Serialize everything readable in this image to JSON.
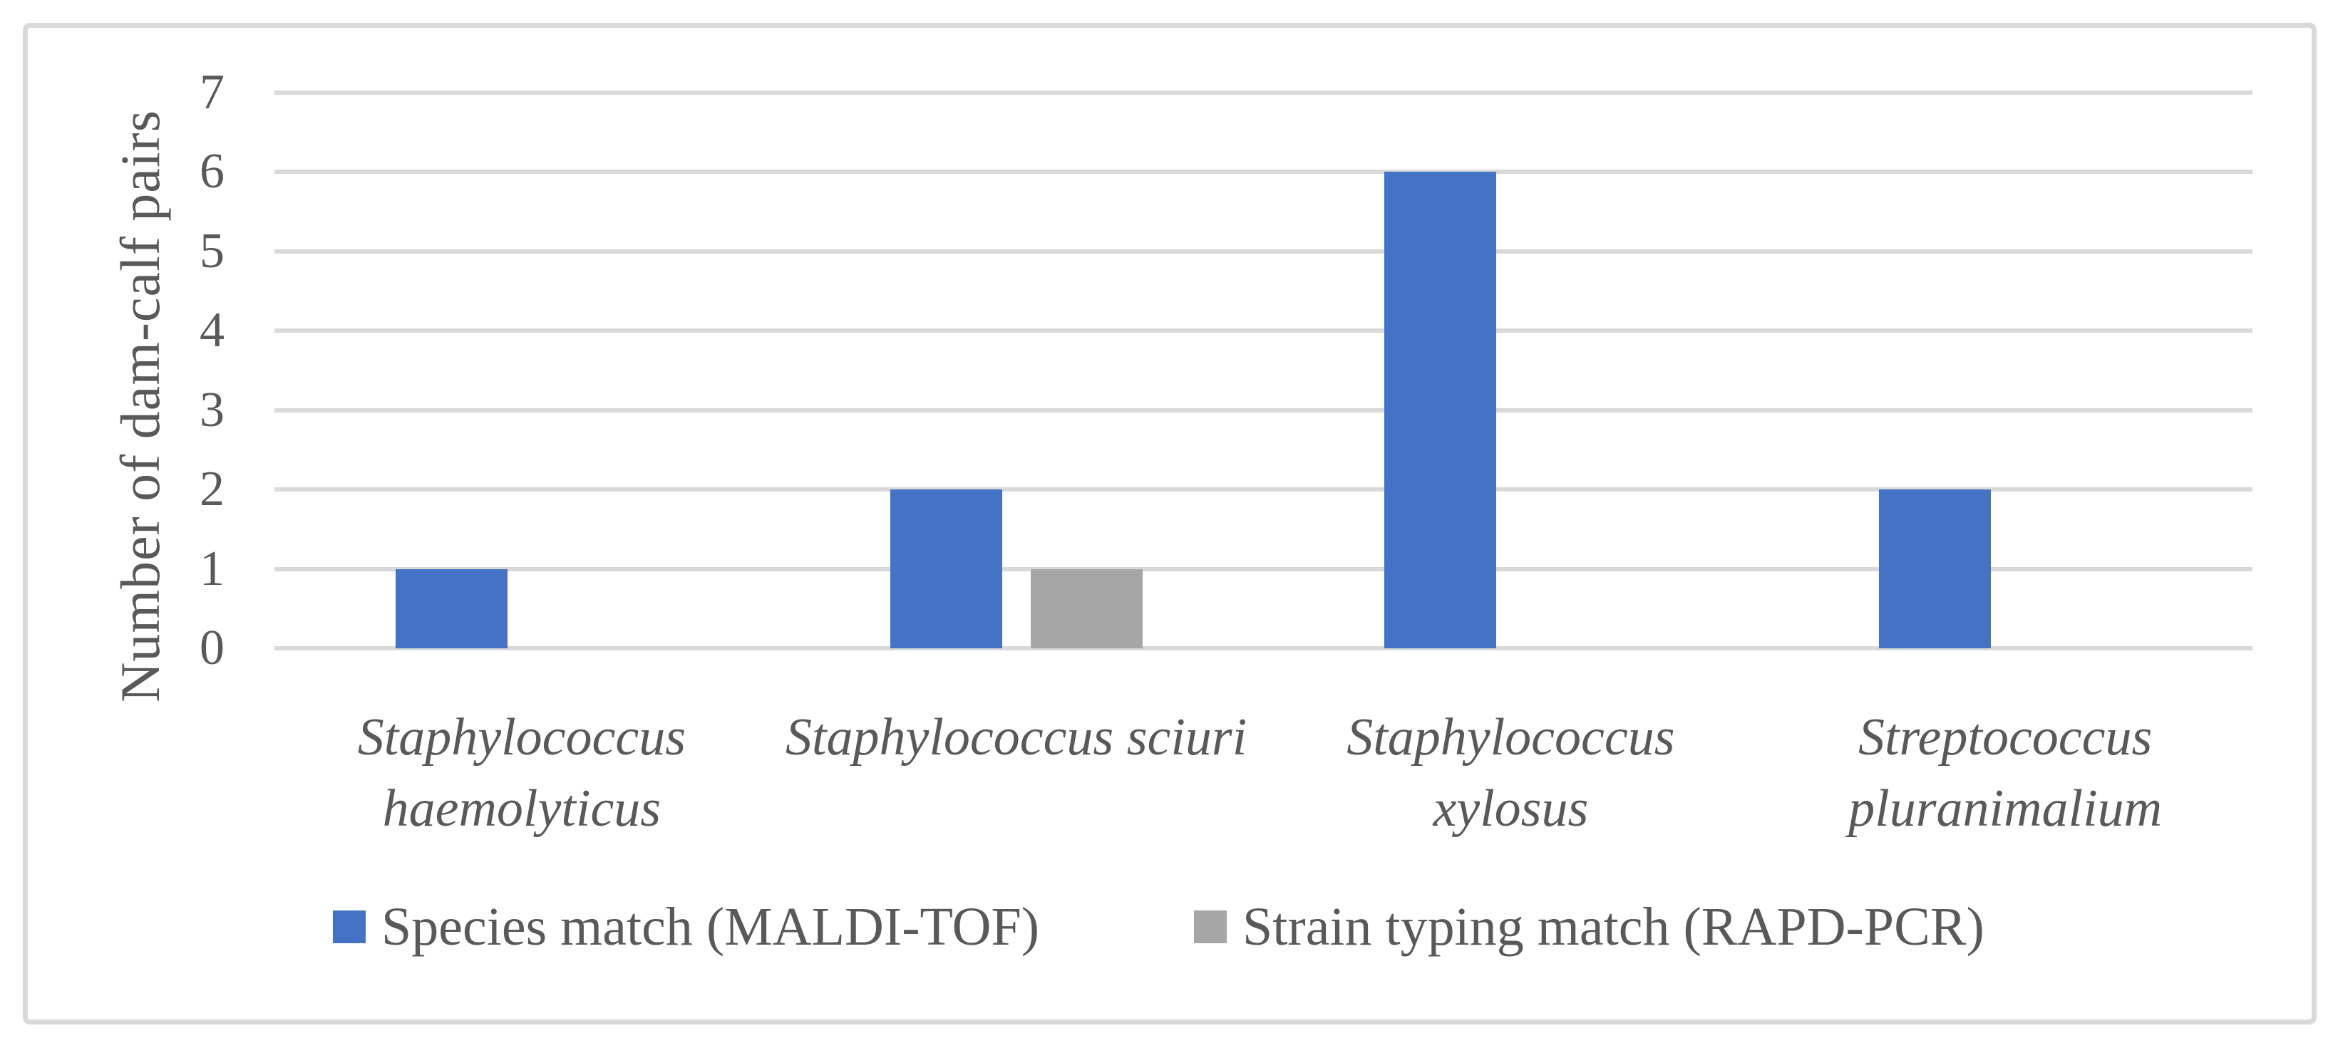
{
  "chart_data": {
    "type": "bar",
    "title": "",
    "xlabel": "",
    "ylabel": "Number of dam-calf pairs",
    "ylim": [
      0,
      7
    ],
    "yticks": [
      0,
      1,
      2,
      3,
      4,
      5,
      6,
      7
    ],
    "grid": true,
    "legend_position": "bottom-center",
    "categories": [
      "Staphylococcus haemolyticus",
      "Staphylococcus sciuri",
      "Staphylococcus xylosus",
      "Streptococcus pluranimalium"
    ],
    "category_label_lines": [
      [
        "Staphylococcus",
        "haemolyticus"
      ],
      [
        "Staphylococcus sciuri"
      ],
      [
        "Staphylococcus",
        "xylosus"
      ],
      [
        "Streptococcus",
        "pluranimalium"
      ]
    ],
    "series": [
      {
        "name": "Species match (MALDI-TOF)",
        "color": "#4472C4",
        "values": [
          1,
          2,
          6,
          2
        ]
      },
      {
        "name": "Strain typing match (RAPD-PCR)",
        "color": "#A6A6A6",
        "values": [
          0,
          1,
          0,
          0
        ]
      }
    ],
    "colors": {
      "axis_text": "#595959",
      "gridline": "#D9D9D9",
      "chart_border": "#D9D9D9",
      "background": "#FFFFFF"
    }
  }
}
